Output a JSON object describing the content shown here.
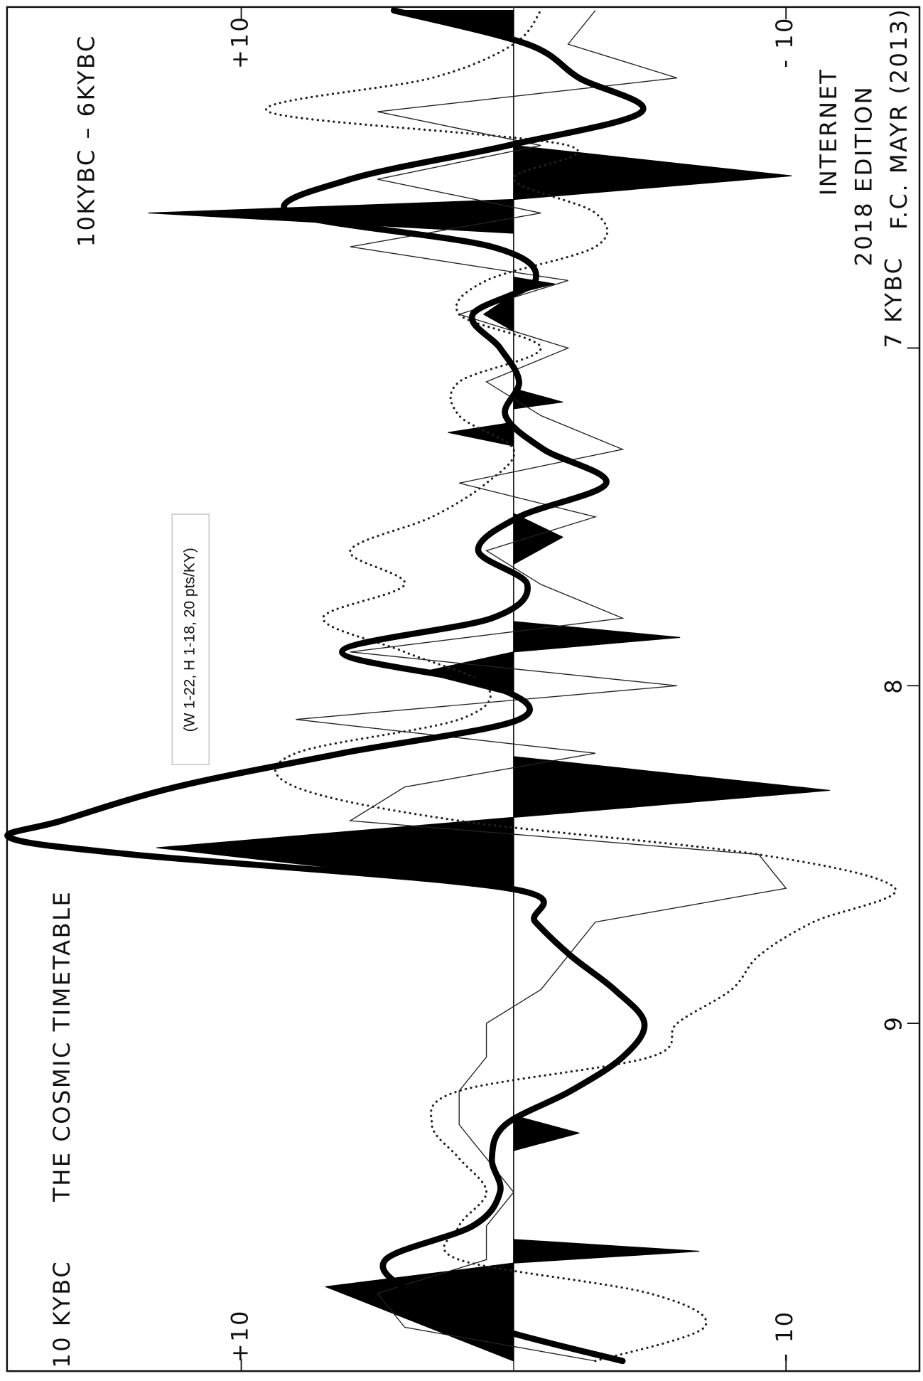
{
  "chart_data": {
    "type": "line",
    "title": "THE COSMIC TIMETABLE",
    "subtitle": "10KYBC – 6KYBC",
    "corner_label": "10 KYBC",
    "note": "(W 1-22, H 1-18, 20 pts/KY)",
    "credits": [
      "INTERNET",
      "2018 EDITION",
      "F.C. MAYR (2013)"
    ],
    "xlim": [
      10.03,
      5.99
    ],
    "xticks": [
      9,
      8,
      {
        "value": 7,
        "label": "7 KYBC"
      }
    ],
    "ylim": [
      18.6,
      -14.9
    ],
    "yticks": [
      {
        "value": 10,
        "label": "+10"
      },
      {
        "value": -10,
        "label": "- 10"
      }
    ],
    "series": [
      {
        "style": "area",
        "color": "#000000",
        "x": [
          10.0,
          9.78,
          9.71,
          9.675,
          9.64,
          9.377,
          9.325,
          9.273,
          8.6,
          8.48,
          8.39,
          8.31,
          8.21,
          8.03,
          7.96,
          7.9,
          7.857,
          7.81,
          7.64,
          7.56,
          7.49,
          7.29,
          7.25,
          7.22,
          7.18,
          7.16,
          7.12,
          6.95,
          6.9,
          6.84,
          6.81,
          6.79,
          6.66,
          6.6,
          6.56,
          6.49,
          6.4,
          6.08,
          6.0,
          6.0
        ],
        "values": [
          0,
          6.9,
          0,
          -6.8,
          0,
          0,
          -2.4,
          0,
          0,
          13.1,
          0,
          -11.6,
          0,
          0,
          3.4,
          0,
          -6.1,
          0,
          0,
          -1.8,
          0,
          0,
          2.4,
          0,
          0,
          -1.8,
          0,
          0,
          1.1,
          0,
          -1.5,
          0,
          0,
          13.4,
          0,
          -10.2,
          0,
          0,
          4.2,
          0
        ]
      },
      {
        "style": "thin",
        "color": "#222222",
        "x": [
          10.0,
          9.9,
          9.8,
          9.7,
          9.6,
          9.5,
          9.4,
          9.3,
          9.2,
          9.1,
          9.0,
          8.9,
          8.8,
          8.7,
          8.6,
          8.5,
          8.4,
          8.3,
          8.2,
          8.1,
          8.0,
          7.9,
          7.8,
          7.7,
          7.6,
          7.5,
          7.4,
          7.3,
          7.2,
          7.1,
          7.0,
          6.9,
          6.8,
          6.7,
          6.6,
          6.5,
          6.4,
          6.3,
          6.2,
          6.1,
          6.0
        ],
        "values": [
          -3,
          4,
          5,
          1,
          1,
          0,
          1,
          2,
          2,
          1,
          1,
          -1,
          -2,
          -3,
          -10,
          -9,
          6,
          4,
          -3,
          8,
          -6,
          6,
          -4,
          -1,
          1,
          -3,
          2,
          -4,
          -1,
          1,
          -2,
          2,
          -2,
          6,
          -1,
          5,
          -1,
          5,
          -6,
          -2,
          -3
        ]
      },
      {
        "style": "dotted",
        "color": "#222222",
        "x": [
          10.0,
          9.9,
          9.8,
          9.7,
          9.6,
          9.5,
          9.4,
          9.3,
          9.2,
          9.1,
          9.0,
          8.9,
          8.8,
          8.7,
          8.6,
          8.5,
          8.4,
          8.3,
          8.2,
          8.1,
          8.0,
          7.9,
          7.8,
          7.7,
          7.6,
          7.5,
          7.4,
          7.3,
          7.2,
          7.1,
          7.0,
          6.9,
          6.8,
          6.7,
          6.6,
          6.5,
          6.4,
          6.3,
          6.2,
          6.1,
          6.0
        ],
        "values": [
          -3,
          -7,
          -5,
          2,
          2,
          1,
          2,
          3,
          2,
          -5,
          -6,
          -8,
          -9,
          -11,
          -14,
          -9,
          2,
          8,
          8,
          2,
          1,
          4,
          7,
          4,
          6,
          3,
          1,
          0,
          2,
          2,
          -1,
          2,
          1,
          -3,
          -3,
          0,
          -2,
          9,
          3,
          0,
          -1
        ]
      },
      {
        "style": "thick",
        "color": "#000000",
        "x": [
          10.0,
          9.9,
          9.8,
          9.7,
          9.6,
          9.5,
          9.4,
          9.3,
          9.2,
          9.1,
          9.0,
          8.9,
          8.8,
          8.7,
          8.6,
          8.5,
          8.45,
          8.4,
          8.3,
          8.2,
          8.1,
          8.0,
          7.9,
          7.8,
          7.7,
          7.6,
          7.5,
          7.4,
          7.3,
          7.2,
          7.1,
          7.0,
          6.9,
          6.8,
          6.7,
          6.6,
          6.5,
          6.4,
          6.3,
          6.2,
          6.1,
          6.0
        ],
        "values": [
          -4,
          0.8,
          3.7,
          4.7,
          1.5,
          0.5,
          0.8,
          0.3,
          -2.1,
          -4.0,
          -4.8,
          -3.7,
          -2.1,
          -0.8,
          0.2,
          14,
          18.5,
          16.6,
          12.4,
          6.3,
          -0.2,
          0.8,
          6.3,
          0.8,
          -0.5,
          1.3,
          -0.2,
          -3.4,
          -1.1,
          0.3,
          -0.2,
          0.5,
          1.5,
          -0.8,
          0.8,
          8.2,
          6.0,
          0.2,
          -4.7,
          -2.4,
          -0.5,
          4.4
        ]
      }
    ]
  }
}
